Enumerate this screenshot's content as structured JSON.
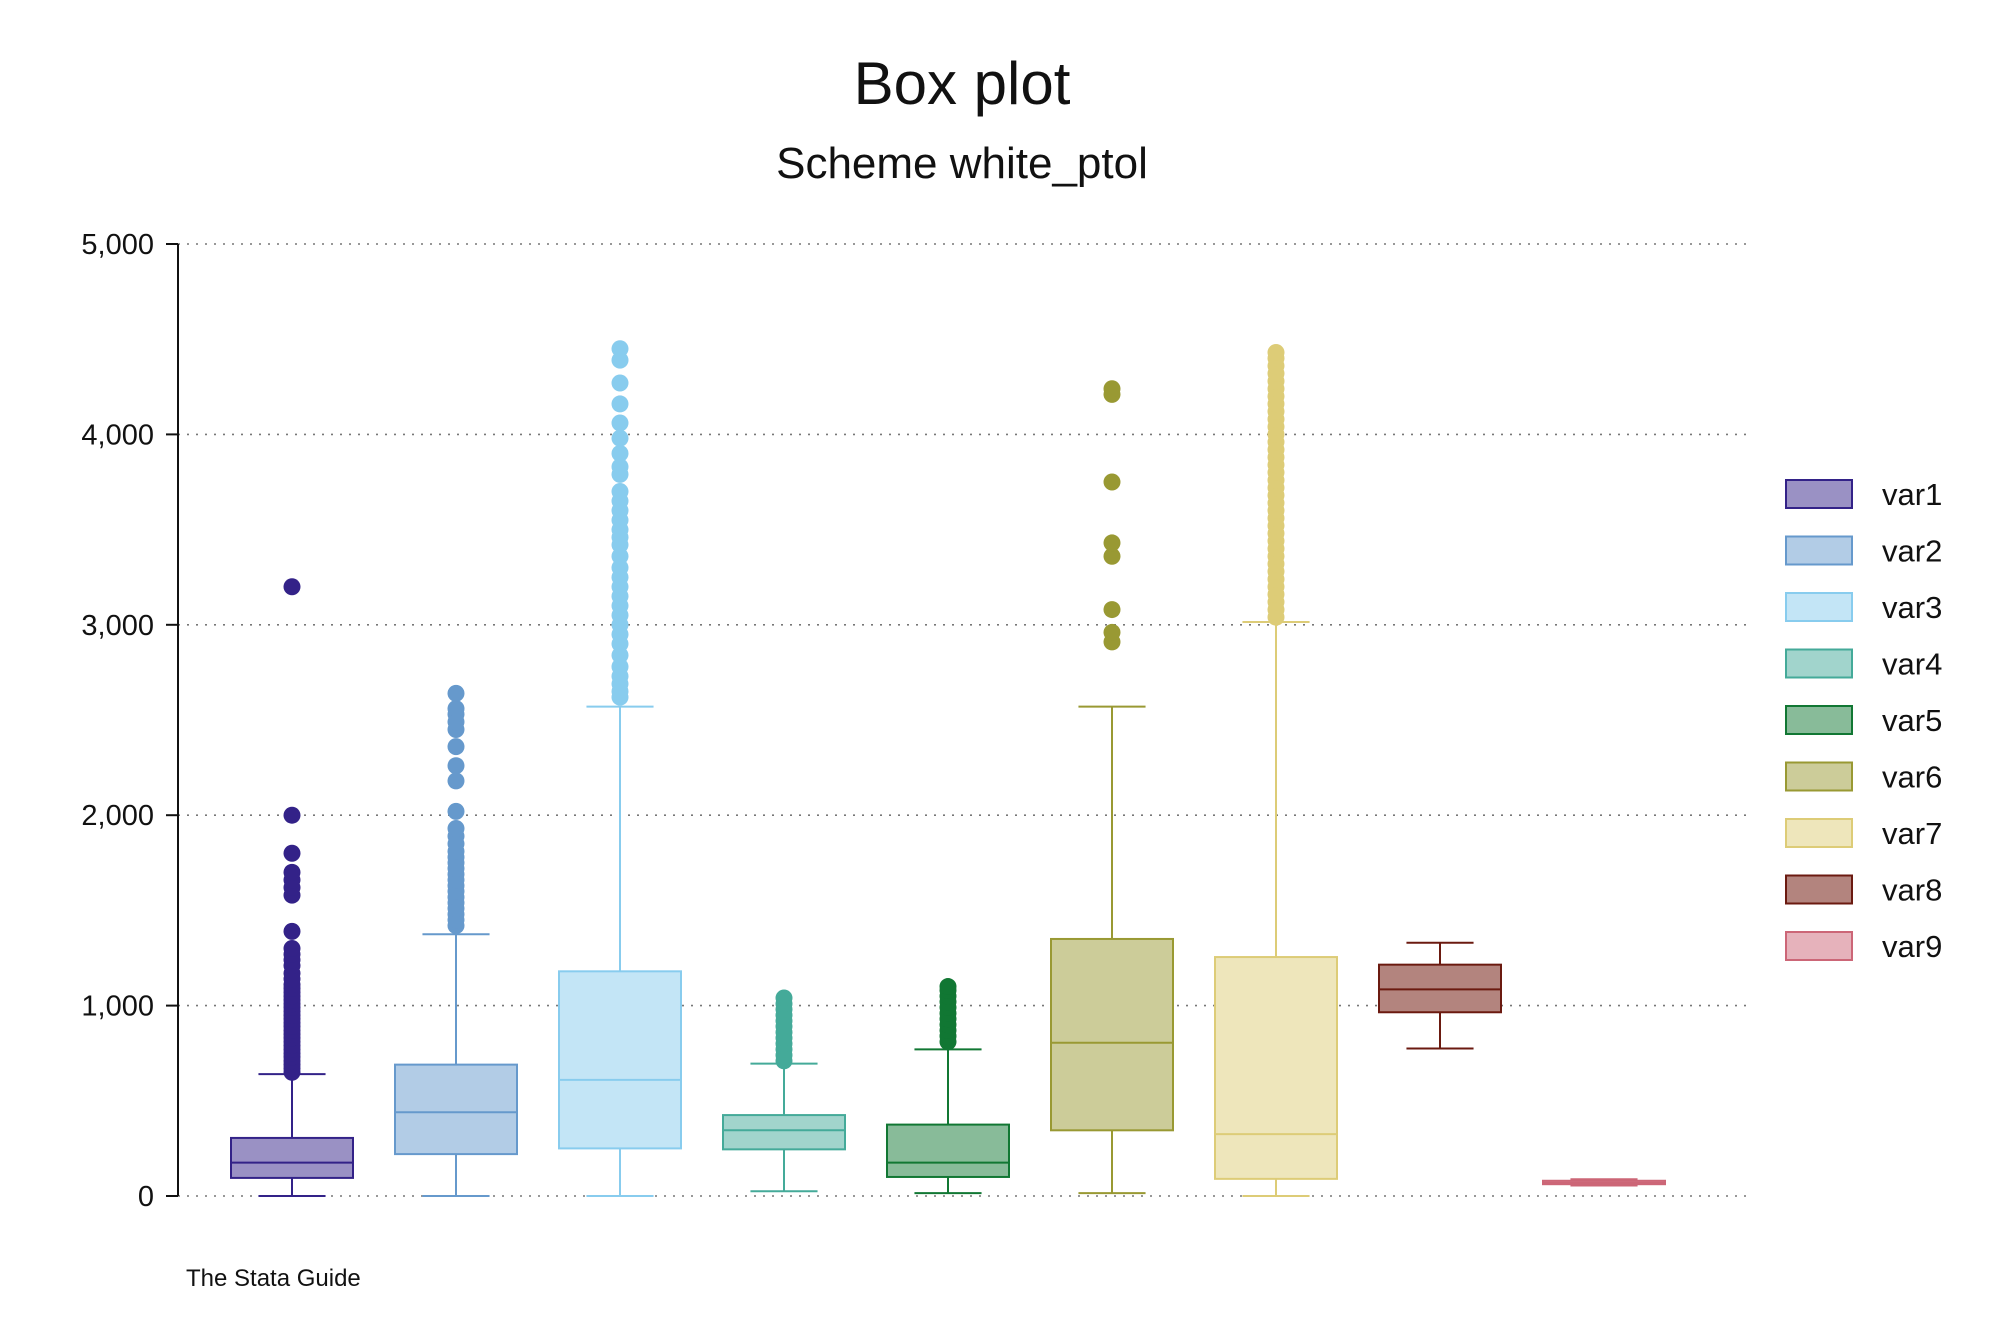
{
  "chart_data": {
    "type": "box",
    "title": "Box plot",
    "subtitle": "Scheme white_ptol",
    "note": "The Stata Guide",
    "xlabel": "",
    "ylabel": "",
    "ylim": [
      0,
      5000
    ],
    "yticks": [
      0,
      1000,
      2000,
      3000,
      4000,
      5000
    ],
    "ytick_labels": [
      "0",
      "1,000",
      "2,000",
      "3,000",
      "4,000",
      "5,000"
    ],
    "grid": "horizontal dotted",
    "legend_position": "right",
    "series": [
      {
        "name": "var1",
        "color": "#332288",
        "fill": "#9a91c4",
        "whisker_low": 0,
        "q1": 95,
        "median": 175,
        "q3": 305,
        "whisker_high": 640,
        "outliers": [
          650,
          670,
          690,
          710,
          730,
          750,
          770,
          790,
          810,
          830,
          850,
          870,
          890,
          910,
          930,
          950,
          970,
          990,
          1010,
          1030,
          1050,
          1070,
          1090,
          1110,
          1140,
          1170,
          1210,
          1240,
          1270,
          1300,
          1390,
          1580,
          1620,
          1660,
          1700,
          1800,
          2000,
          3200
        ]
      },
      {
        "name": "var2",
        "color": "#6699cc",
        "fill": "#b2cce6",
        "whisker_low": 0,
        "q1": 220,
        "median": 440,
        "q3": 690,
        "whisker_high": 1375,
        "outliers": [
          1420,
          1450,
          1480,
          1510,
          1540,
          1570,
          1600,
          1630,
          1660,
          1690,
          1720,
          1750,
          1780,
          1810,
          1850,
          1890,
          1930,
          2020,
          2180,
          2260,
          2360,
          2450,
          2490,
          2530,
          2560,
          2640
        ]
      },
      {
        "name": "var3",
        "color": "#88ccee",
        "fill": "#c3e5f6",
        "whisker_low": 0,
        "q1": 250,
        "median": 610,
        "q3": 1180,
        "whisker_high": 2570,
        "outliers": [
          2620,
          2650,
          2690,
          2730,
          2780,
          2840,
          2900,
          2950,
          3000,
          3050,
          3100,
          3150,
          3200,
          3250,
          3300,
          3360,
          3420,
          3460,
          3500,
          3550,
          3600,
          3650,
          3700,
          3790,
          3830,
          3900,
          3980,
          4060,
          4160,
          4270,
          4390,
          4450
        ]
      },
      {
        "name": "var4",
        "color": "#44aa99",
        "fill": "#a1d4cc",
        "whisker_low": 25,
        "q1": 245,
        "median": 345,
        "q3": 425,
        "whisker_high": 695,
        "outliers": [
          710,
          740,
          770,
          800,
          830,
          860,
          890,
          920,
          950,
          980,
          1010,
          1040
        ]
      },
      {
        "name": "var5",
        "color": "#117733",
        "fill": "#88bb99",
        "whisker_low": 15,
        "q1": 100,
        "median": 175,
        "q3": 375,
        "whisker_high": 770,
        "outliers": [
          810,
          840,
          870,
          900,
          930,
          960,
          990,
          1020,
          1050,
          1080,
          1100
        ]
      },
      {
        "name": "var6",
        "color": "#999933",
        "fill": "#cccc99",
        "whisker_low": 15,
        "q1": 345,
        "median": 805,
        "q3": 1350,
        "whisker_high": 2570,
        "outliers": [
          2910,
          2960,
          3080,
          3360,
          3430,
          3750,
          4210,
          4240
        ]
      },
      {
        "name": "var7",
        "color": "#ddcc77",
        "fill": "#eee6bb",
        "whisker_low": 0,
        "q1": 90,
        "median": 325,
        "q3": 1255,
        "whisker_high": 3015,
        "outliers": [
          3040,
          3080,
          3120,
          3160,
          3200,
          3240,
          3280,
          3320,
          3360,
          3400,
          3440,
          3480,
          3520,
          3560,
          3600,
          3640,
          3680,
          3720,
          3760,
          3800,
          3840,
          3880,
          3920,
          3960,
          4000,
          4040,
          4080,
          4120,
          4160,
          4200,
          4240,
          4280,
          4320,
          4360,
          4400,
          4430
        ]
      },
      {
        "name": "var8",
        "color": "#882255",
        "fill": "#b3847e",
        "stroke": "#6b1a10",
        "whisker_low": 775,
        "q1": 965,
        "median": 1085,
        "q3": 1215,
        "whisker_high": 1330,
        "outliers": []
      },
      {
        "name": "var9",
        "color": "#cc6677",
        "fill": "#e6b2bb",
        "whisker_low": 55,
        "q1": 62,
        "median": 70,
        "q3": 80,
        "whisker_high": 88,
        "outliers": []
      }
    ]
  }
}
